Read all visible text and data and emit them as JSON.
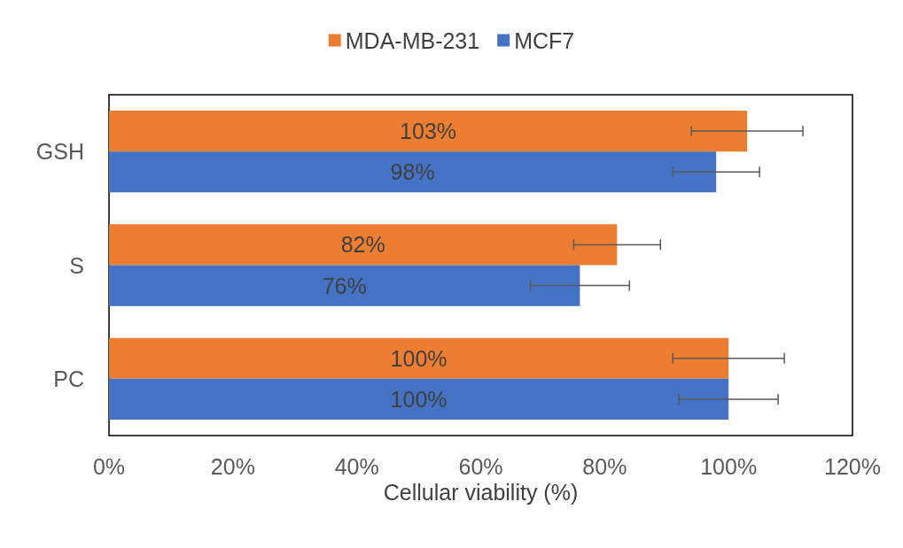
{
  "chart_data": {
    "type": "bar",
    "orientation": "horizontal",
    "categories": [
      "GSH",
      "S",
      "PC"
    ],
    "series": [
      {
        "name": "MDA-MB-231",
        "color": "#ed7d31",
        "values": [
          103,
          82,
          100
        ],
        "errors": [
          9,
          7,
          9
        ],
        "value_labels": [
          "103%",
          "82%",
          "100%"
        ]
      },
      {
        "name": "MCF7",
        "color": "#4472c4",
        "values": [
          98,
          76,
          100
        ],
        "errors": [
          7,
          8,
          8
        ],
        "value_labels": [
          "98%",
          "76%",
          "100%"
        ]
      }
    ],
    "xlim": [
      0,
      120
    ],
    "xticks": [
      {
        "value": 0,
        "label": "0%"
      },
      {
        "value": 20,
        "label": "20%"
      },
      {
        "value": 40,
        "label": "40%"
      },
      {
        "value": 60,
        "label": "60%"
      },
      {
        "value": 80,
        "label": "80%"
      },
      {
        "value": 100,
        "label": "100%"
      },
      {
        "value": 120,
        "label": "120%"
      }
    ],
    "xlabel": "Cellular viability (%)",
    "legend": "top",
    "grid": false
  }
}
